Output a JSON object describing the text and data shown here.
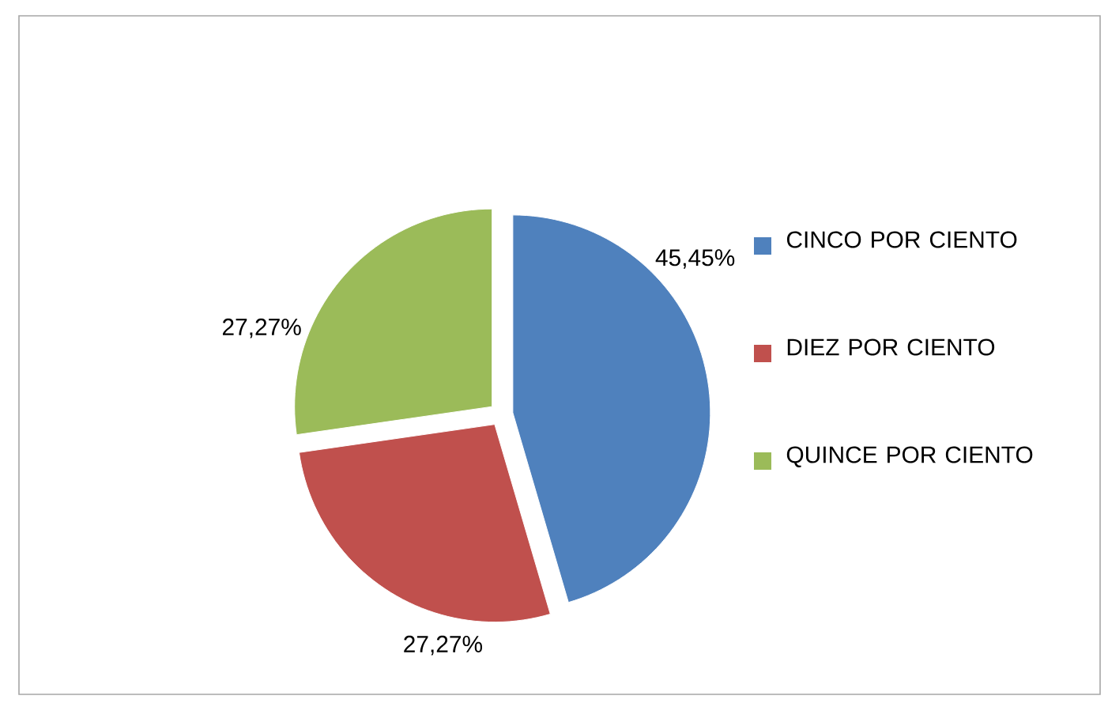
{
  "chart_data": {
    "type": "pie",
    "categories": [
      "CINCO POR CIENTO",
      "DIEZ POR CIENTO",
      "QUINCE POR CIENTO"
    ],
    "values": [
      45.45,
      27.27,
      27.27
    ],
    "colors": [
      "#4f81bd",
      "#c0504d",
      "#9bbb59"
    ],
    "value_labels": [
      "45,45%",
      "27,27%",
      "27,27%"
    ],
    "legend": "right"
  }
}
